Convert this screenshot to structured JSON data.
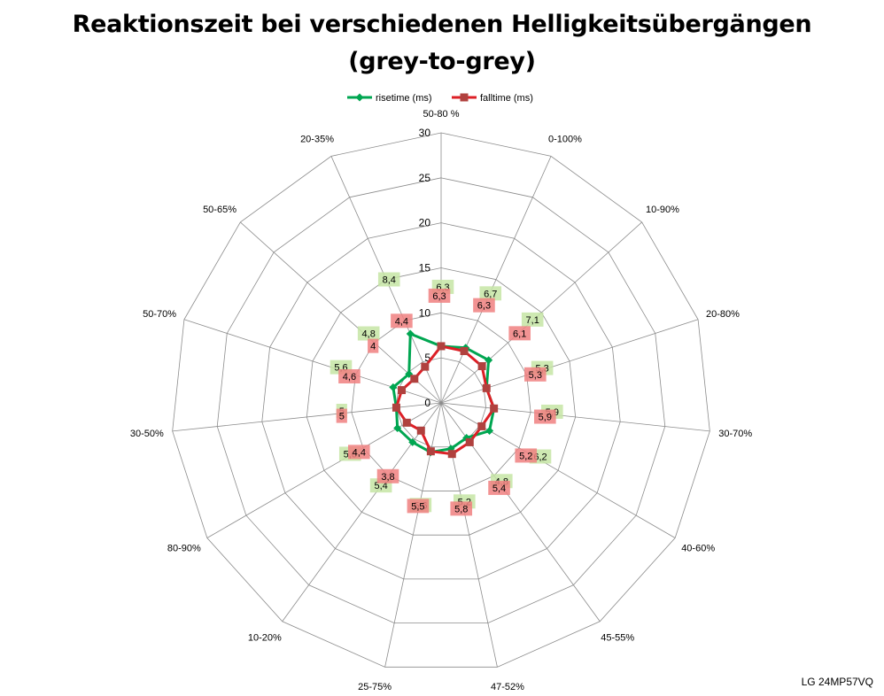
{
  "title_line1": "Reaktionszeit bei verschiedenen Helligkeitsübergängen",
  "title_line2": "(grey-to-grey)",
  "footer": "LG 24MP57VQ",
  "colors": {
    "rise_line": "#00A651",
    "rise_label_bg": "#C6E5A4",
    "fall_line": "#DD1F26",
    "fall_marker": "#B0413E",
    "fall_label_bg": "#F08080",
    "grid": "#8C8C8C"
  },
  "chart_data": {
    "type": "radar",
    "categories": [
      "50-80 %",
      "0-100%",
      "10-90%",
      "20-80%",
      "30-70%",
      "40-60%",
      "45-55%",
      "47-52%",
      "25-75%",
      "10-20%",
      "80-90%",
      "30-50%",
      "50-70%",
      "50-65%",
      "20-35%"
    ],
    "series": [
      {
        "name": "risetime (ms)",
        "values": [
          6.3,
          6.7,
          7.1,
          5.3,
          5.9,
          6.2,
          4.8,
          5.2,
          5.6,
          5.4,
          5.6,
          5.0,
          5.6,
          4.8,
          8.4
        ],
        "labels": [
          "6,3",
          "6,7",
          "7,1",
          "5,3",
          "5,9",
          "6,2",
          "4,8",
          "5,2",
          "5,6",
          "5,4",
          "5,6",
          "5",
          "5,6",
          "4,8",
          "8,4"
        ]
      },
      {
        "name": "falltime (ms)",
        "values": [
          6.3,
          6.3,
          6.1,
          5.3,
          5.9,
          5.2,
          5.4,
          5.8,
          5.5,
          3.8,
          4.4,
          5.0,
          4.6,
          4.0,
          4.4
        ],
        "labels": [
          "6,3",
          "6,3",
          "6,1",
          "5,3",
          "5,9",
          "5,2",
          "5,4",
          "5,8",
          "5,5",
          "3,8",
          "4,4",
          "5",
          "4,6",
          "4",
          "4,4"
        ]
      }
    ],
    "rlim": [
      0,
      30
    ],
    "ticks": [
      0,
      5,
      10,
      15,
      20,
      25,
      30
    ],
    "tick_labels": [
      "0",
      "5",
      "10",
      "15",
      "20",
      "25",
      "30"
    ],
    "legend_position": "top",
    "grid": true
  }
}
